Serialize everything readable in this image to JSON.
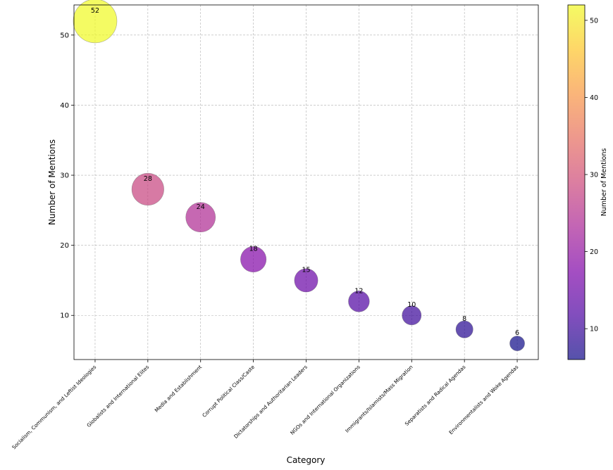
{
  "chart_data": {
    "type": "scatter",
    "categories": [
      "Socialism, Communism, and Leftist Ideologies",
      "Globalists and International Elites",
      "Media and Establishment",
      "Corrupt Political Class/Caste",
      "Dictatorships and Authoritarian Leaders",
      "NGOs and International Organizations",
      "Immigrants/Islamists/Mass Migration",
      "Separatists and Radical Agendas",
      "Environmentalists and Woke Agendas"
    ],
    "values": [
      52,
      28,
      24,
      18,
      15,
      12,
      10,
      8,
      6
    ],
    "xlabel": "Category",
    "ylabel": "Number of Mentions",
    "ylim": [
      3.7,
      54.3
    ],
    "yticks": [
      10,
      20,
      30,
      40,
      50
    ],
    "grid": true,
    "bubble_size_encodes": "Number of Mentions",
    "colorbar": {
      "label": "Number of Mentions",
      "colormap": "plasma",
      "range": [
        6,
        52
      ],
      "ticks": [
        10,
        20,
        30,
        40,
        50
      ]
    }
  }
}
